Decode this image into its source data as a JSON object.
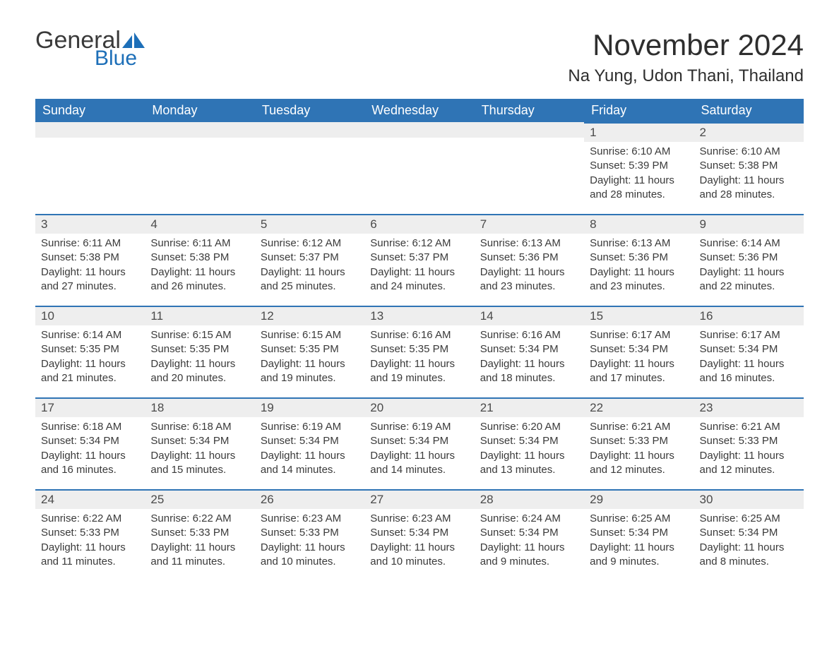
{
  "logo": {
    "text1": "General",
    "text2": "Blue",
    "icon_color": "#1d6fb8"
  },
  "title": "November 2024",
  "location": "Na Yung, Udon Thani, Thailand",
  "colors": {
    "header_bg": "#2f74b5",
    "header_text": "#ffffff",
    "bar_bg": "#eeeeee",
    "bar_border": "#2f74b5",
    "body_text": "#3a3a3a"
  },
  "weekdays": [
    "Sunday",
    "Monday",
    "Tuesday",
    "Wednesday",
    "Thursday",
    "Friday",
    "Saturday"
  ],
  "weeks": [
    [
      null,
      null,
      null,
      null,
      null,
      {
        "n": "1",
        "sunrise": "6:10 AM",
        "sunset": "5:39 PM",
        "daylight": "11 hours and 28 minutes."
      },
      {
        "n": "2",
        "sunrise": "6:10 AM",
        "sunset": "5:38 PM",
        "daylight": "11 hours and 28 minutes."
      }
    ],
    [
      {
        "n": "3",
        "sunrise": "6:11 AM",
        "sunset": "5:38 PM",
        "daylight": "11 hours and 27 minutes."
      },
      {
        "n": "4",
        "sunrise": "6:11 AM",
        "sunset": "5:38 PM",
        "daylight": "11 hours and 26 minutes."
      },
      {
        "n": "5",
        "sunrise": "6:12 AM",
        "sunset": "5:37 PM",
        "daylight": "11 hours and 25 minutes."
      },
      {
        "n": "6",
        "sunrise": "6:12 AM",
        "sunset": "5:37 PM",
        "daylight": "11 hours and 24 minutes."
      },
      {
        "n": "7",
        "sunrise": "6:13 AM",
        "sunset": "5:36 PM",
        "daylight": "11 hours and 23 minutes."
      },
      {
        "n": "8",
        "sunrise": "6:13 AM",
        "sunset": "5:36 PM",
        "daylight": "11 hours and 23 minutes."
      },
      {
        "n": "9",
        "sunrise": "6:14 AM",
        "sunset": "5:36 PM",
        "daylight": "11 hours and 22 minutes."
      }
    ],
    [
      {
        "n": "10",
        "sunrise": "6:14 AM",
        "sunset": "5:35 PM",
        "daylight": "11 hours and 21 minutes."
      },
      {
        "n": "11",
        "sunrise": "6:15 AM",
        "sunset": "5:35 PM",
        "daylight": "11 hours and 20 minutes."
      },
      {
        "n": "12",
        "sunrise": "6:15 AM",
        "sunset": "5:35 PM",
        "daylight": "11 hours and 19 minutes."
      },
      {
        "n": "13",
        "sunrise": "6:16 AM",
        "sunset": "5:35 PM",
        "daylight": "11 hours and 19 minutes."
      },
      {
        "n": "14",
        "sunrise": "6:16 AM",
        "sunset": "5:34 PM",
        "daylight": "11 hours and 18 minutes."
      },
      {
        "n": "15",
        "sunrise": "6:17 AM",
        "sunset": "5:34 PM",
        "daylight": "11 hours and 17 minutes."
      },
      {
        "n": "16",
        "sunrise": "6:17 AM",
        "sunset": "5:34 PM",
        "daylight": "11 hours and 16 minutes."
      }
    ],
    [
      {
        "n": "17",
        "sunrise": "6:18 AM",
        "sunset": "5:34 PM",
        "daylight": "11 hours and 16 minutes."
      },
      {
        "n": "18",
        "sunrise": "6:18 AM",
        "sunset": "5:34 PM",
        "daylight": "11 hours and 15 minutes."
      },
      {
        "n": "19",
        "sunrise": "6:19 AM",
        "sunset": "5:34 PM",
        "daylight": "11 hours and 14 minutes."
      },
      {
        "n": "20",
        "sunrise": "6:19 AM",
        "sunset": "5:34 PM",
        "daylight": "11 hours and 14 minutes."
      },
      {
        "n": "21",
        "sunrise": "6:20 AM",
        "sunset": "5:34 PM",
        "daylight": "11 hours and 13 minutes."
      },
      {
        "n": "22",
        "sunrise": "6:21 AM",
        "sunset": "5:33 PM",
        "daylight": "11 hours and 12 minutes."
      },
      {
        "n": "23",
        "sunrise": "6:21 AM",
        "sunset": "5:33 PM",
        "daylight": "11 hours and 12 minutes."
      }
    ],
    [
      {
        "n": "24",
        "sunrise": "6:22 AM",
        "sunset": "5:33 PM",
        "daylight": "11 hours and 11 minutes."
      },
      {
        "n": "25",
        "sunrise": "6:22 AM",
        "sunset": "5:33 PM",
        "daylight": "11 hours and 11 minutes."
      },
      {
        "n": "26",
        "sunrise": "6:23 AM",
        "sunset": "5:33 PM",
        "daylight": "11 hours and 10 minutes."
      },
      {
        "n": "27",
        "sunrise": "6:23 AM",
        "sunset": "5:34 PM",
        "daylight": "11 hours and 10 minutes."
      },
      {
        "n": "28",
        "sunrise": "6:24 AM",
        "sunset": "5:34 PM",
        "daylight": "11 hours and 9 minutes."
      },
      {
        "n": "29",
        "sunrise": "6:25 AM",
        "sunset": "5:34 PM",
        "daylight": "11 hours and 9 minutes."
      },
      {
        "n": "30",
        "sunrise": "6:25 AM",
        "sunset": "5:34 PM",
        "daylight": "11 hours and 8 minutes."
      }
    ]
  ],
  "labels": {
    "sunrise": "Sunrise: ",
    "sunset": "Sunset: ",
    "daylight": "Daylight: "
  }
}
